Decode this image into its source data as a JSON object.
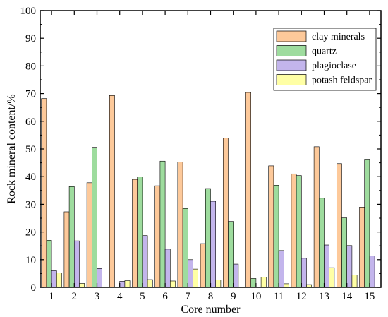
{
  "chart_data": {
    "type": "bar",
    "title": "",
    "xlabel": "Core number",
    "ylabel": "Rock mineral content/%",
    "ylim": [
      0,
      100
    ],
    "yticks": [
      "0",
      "10",
      "20",
      "30",
      "40",
      "50",
      "60",
      "70",
      "80",
      "90",
      "100"
    ],
    "categories": [
      "1",
      "2",
      "3",
      "4",
      "5",
      "6",
      "7",
      "8",
      "9",
      "10",
      "11",
      "12",
      "13",
      "14",
      "15"
    ],
    "grid": false,
    "legend_position": "top-right",
    "series": [
      {
        "name": "clay minerals",
        "color": "#FDC99A",
        "values": [
          68.2,
          27.3,
          37.8,
          69.3,
          39.0,
          36.7,
          45.3,
          15.8,
          53.9,
          70.4,
          43.9,
          41.0,
          50.8,
          44.7,
          29.0
        ]
      },
      {
        "name": "quartz",
        "color": "#9EDC9E",
        "values": [
          17.0,
          36.4,
          50.6,
          0,
          39.9,
          45.6,
          28.5,
          35.7,
          23.8,
          3.2,
          36.9,
          40.4,
          32.2,
          25.1,
          46.3
        ]
      },
      {
        "name": "plagioclase",
        "color": "#C3B5EC",
        "values": [
          6.0,
          16.8,
          6.8,
          2.2,
          18.7,
          13.8,
          10.0,
          31.1,
          8.4,
          0,
          13.3,
          10.5,
          15.3,
          15.1,
          11.3
        ]
      },
      {
        "name": "potash feldspar",
        "color": "#FFFFA5",
        "values": [
          5.2,
          1.4,
          0,
          2.4,
          2.8,
          2.3,
          6.6,
          2.7,
          0,
          3.7,
          1.3,
          1.0,
          7.1,
          4.5,
          0
        ]
      }
    ]
  }
}
